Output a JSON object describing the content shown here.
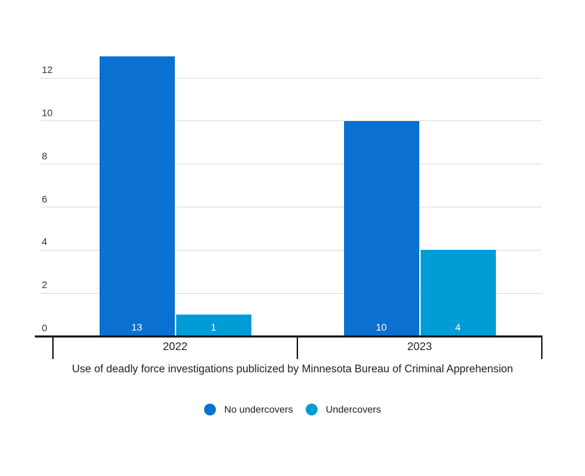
{
  "page": {
    "background": "#ffffff"
  },
  "chart_data": {
    "type": "bar",
    "grouped": true,
    "title": "",
    "caption": "Use of deadly force investigations publicized by Minnesota Bureau of Criminal Apprehension",
    "categories": [
      "2022",
      "2023"
    ],
    "series": [
      {
        "name": "No undercovers",
        "color": "#0a70d2",
        "values": [
          13,
          10
        ]
      },
      {
        "name": "Undercovers",
        "color": "#009cd6",
        "values": [
          1,
          4
        ]
      }
    ],
    "y_ticks": [
      0,
      2,
      4,
      6,
      8,
      10,
      12
    ],
    "ylim": [
      0,
      13
    ],
    "xlabel": "",
    "ylabel": "",
    "grid": true,
    "legend_position": "bottom",
    "legend_marker": "circle",
    "value_labels_position": "inside-bottom",
    "colors": {
      "grid": "#dcdcdc",
      "axis": "#1a1a1a",
      "y_tick_label": "#333333",
      "category_label": "#1d1d1d",
      "caption_text": "#202022",
      "legend_text": "#1d1d1d",
      "value_label": "#ffffff",
      "background": "#ffffff"
    }
  }
}
